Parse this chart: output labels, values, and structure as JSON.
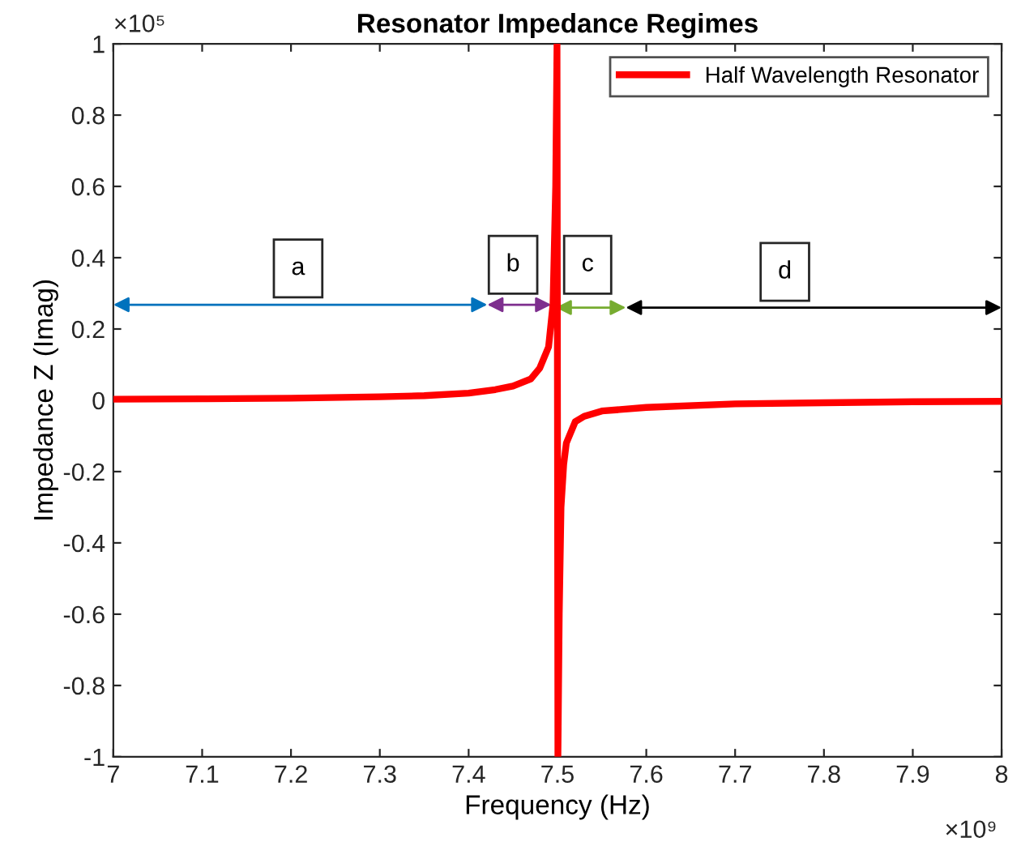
{
  "chart_data": {
    "type": "line",
    "title": "Resonator Impedance Regimes",
    "xlabel": "Frequency (Hz)",
    "ylabel": "Impedance Z (Imag)",
    "xlim": [
      7,
      8
    ],
    "xticks": [
      7,
      7.1,
      7.2,
      7.3,
      7.4,
      7.5,
      7.6,
      7.7,
      7.8,
      7.9,
      8
    ],
    "ylim": [
      -1,
      1
    ],
    "yticks": [
      -1,
      -0.8,
      -0.6,
      -0.4,
      -0.2,
      0,
      0.2,
      0.4,
      0.6,
      0.8,
      1
    ],
    "grid": false,
    "legend": "top right",
    "line_style": "solid",
    "marker": "none",
    "series": [
      {
        "name": "Half Wavelength Resonator",
        "color": "#ff0000",
        "x": [
          7,
          7.1,
          7.2,
          7.3,
          7.35,
          7.4,
          7.43,
          7.45,
          7.47,
          7.48,
          7.49,
          7.495,
          7.498,
          7.4995,
          7.5005,
          7.502,
          7.504,
          7.507,
          7.51,
          7.52,
          7.53,
          7.55,
          7.6,
          7.7,
          7.8,
          7.9,
          8
        ],
        "values": [
          0.003,
          0.004,
          0.006,
          0.01,
          0.013,
          0.02,
          0.03,
          0.04,
          0.06,
          0.09,
          0.15,
          0.27,
          0.6,
          1,
          -1,
          -0.6,
          -0.3,
          -0.18,
          -0.12,
          -0.06,
          -0.045,
          -0.03,
          -0.02,
          -0.01,
          -0.007,
          -0.004,
          -0.003
        ]
      }
    ],
    "annotations": [
      "×10⁵",
      "×10⁹",
      {
        "text": "a",
        "x": 7.208,
        "y": 0.37
      },
      {
        "text": "b",
        "x": 7.45,
        "y": 0.38
      },
      {
        "text": "c",
        "x": 7.534,
        "y": 0.38
      },
      {
        "text": "d",
        "x": 7.756,
        "y": 0.36
      }
    ]
  }
}
